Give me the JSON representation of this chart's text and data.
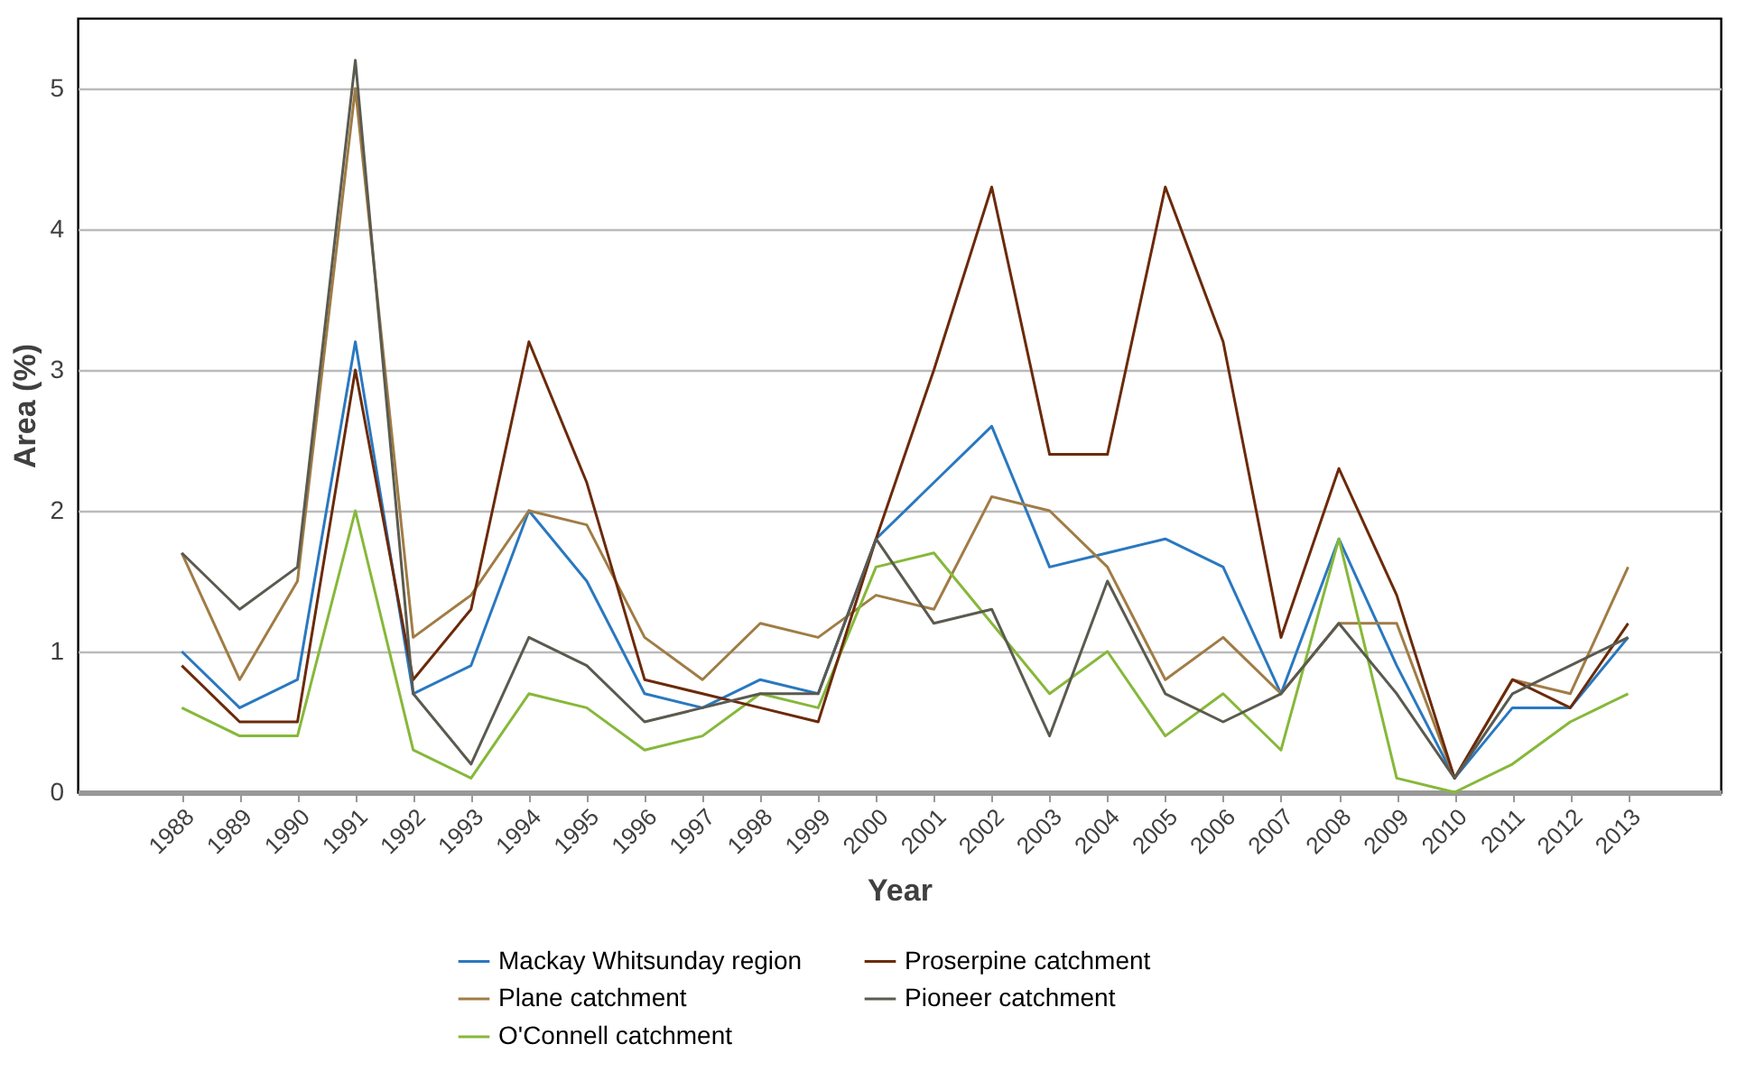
{
  "chart_data": {
    "type": "line",
    "xlabel": "Year",
    "ylabel": "Area (%)",
    "categories": [
      "1988",
      "1989",
      "1990",
      "1991",
      "1992",
      "1993",
      "1994",
      "1995",
      "1996",
      "1997",
      "1998",
      "1999",
      "2000",
      "2001",
      "2002",
      "2003",
      "2004",
      "2005",
      "2006",
      "2007",
      "2008",
      "2009",
      "2010",
      "2011",
      "2012",
      "2013"
    ],
    "series": [
      {
        "name": "Mackay Whitsunday region",
        "color": "#2a78c0",
        "values": [
          1.0,
          0.6,
          0.8,
          3.2,
          0.7,
          0.9,
          2.0,
          1.5,
          0.7,
          0.6,
          0.8,
          0.7,
          1.8,
          2.2,
          2.6,
          1.6,
          1.7,
          1.8,
          1.6,
          0.7,
          1.8,
          0.9,
          0.1,
          0.6,
          0.6,
          1.1
        ]
      },
      {
        "name": "Plane catchment",
        "color": "#a07c45",
        "values": [
          1.7,
          0.8,
          1.5,
          5.0,
          1.1,
          1.4,
          2.0,
          1.9,
          1.1,
          0.8,
          1.2,
          1.1,
          1.4,
          1.3,
          2.1,
          2.0,
          1.6,
          0.8,
          1.1,
          0.7,
          1.2,
          1.2,
          0.1,
          0.8,
          0.7,
          1.6
        ]
      },
      {
        "name": "O'Connell catchment",
        "color": "#86b83a",
        "values": [
          0.6,
          0.4,
          0.4,
          2.0,
          0.3,
          0.1,
          0.7,
          0.6,
          0.3,
          0.4,
          0.7,
          0.6,
          1.6,
          1.7,
          1.2,
          0.7,
          1.0,
          0.4,
          0.7,
          0.3,
          1.8,
          0.1,
          0.0,
          0.2,
          0.5,
          0.7
        ]
      },
      {
        "name": "Proserpine catchment",
        "color": "#6b2a0a",
        "values": [
          0.9,
          0.5,
          0.5,
          3.0,
          0.8,
          1.3,
          3.2,
          2.2,
          0.8,
          0.7,
          0.6,
          0.5,
          1.8,
          3.0,
          4.3,
          2.4,
          2.4,
          4.3,
          3.2,
          1.1,
          2.3,
          1.4,
          0.1,
          0.8,
          0.6,
          1.2
        ]
      },
      {
        "name": "Pioneer catchment",
        "color": "#5a5a50",
        "values": [
          1.7,
          1.3,
          1.6,
          5.2,
          0.7,
          0.2,
          1.1,
          0.9,
          0.5,
          0.6,
          0.7,
          0.7,
          1.8,
          1.2,
          1.3,
          0.4,
          1.5,
          0.7,
          0.5,
          0.7,
          1.2,
          0.7,
          0.1,
          0.7,
          0.9,
          1.1
        ]
      }
    ],
    "ylim": [
      0,
      5.5
    ],
    "yticks": [
      0,
      1,
      2,
      3,
      4,
      5
    ],
    "grid": "y",
    "legend": "bottom",
    "marker": "none",
    "line_style": "solid"
  }
}
